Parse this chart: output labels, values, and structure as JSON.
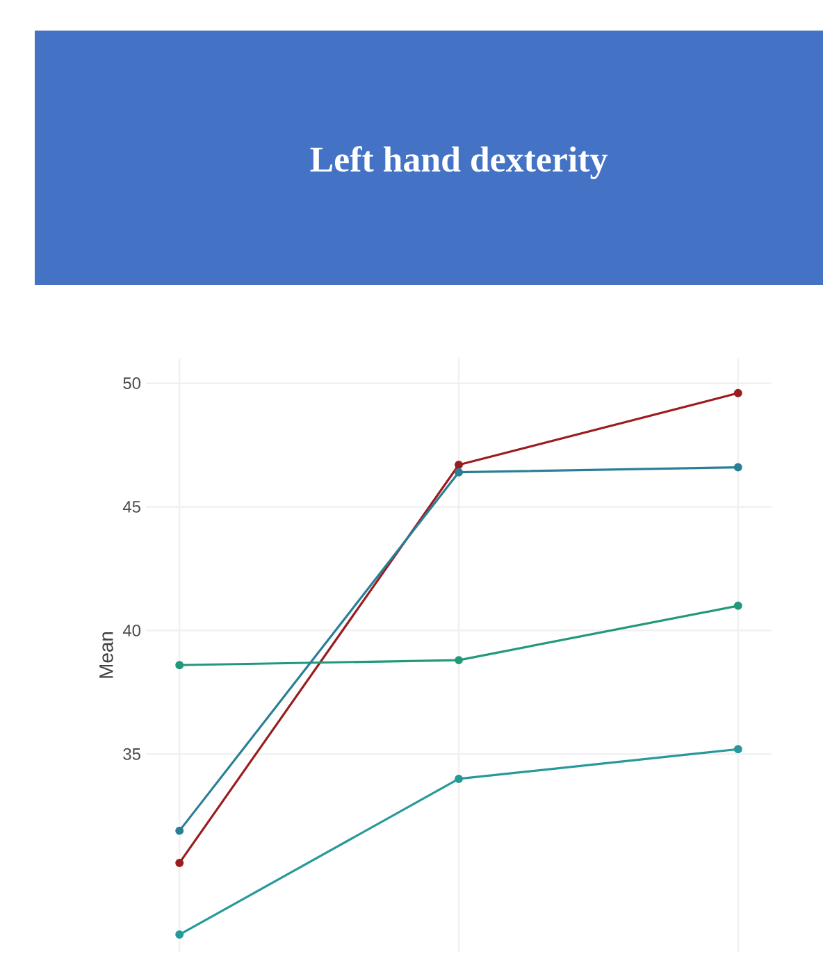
{
  "chart_data": {
    "type": "line",
    "title": "Left hand dexterity",
    "ylabel": "Mean",
    "categories": [
      null,
      null,
      null
    ],
    "series": [
      {
        "color": "#26999a",
        "values": [
          27.7,
          34.0,
          35.2
        ]
      },
      {
        "color": "#9b1c1f",
        "values": [
          30.6,
          46.7,
          49.6
        ]
      },
      {
        "color": "#21997a",
        "values": [
          38.6,
          38.8,
          41.0
        ]
      },
      {
        "color": "#2a7f96",
        "values": [
          31.9,
          46.4,
          46.6
        ]
      }
    ],
    "ylim": [
      27,
      51
    ],
    "yticks": [
      35,
      40,
      45,
      50
    ],
    "grid": true,
    "marker": "circle"
  }
}
